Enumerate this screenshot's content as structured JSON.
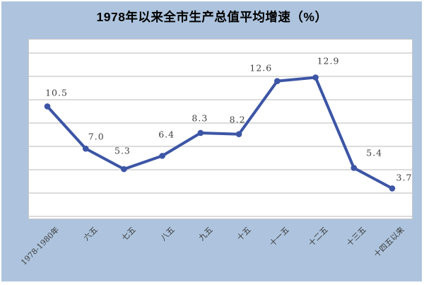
{
  "title": "1978年以来全市生产总值平均增速（%）",
  "chart_data": {
    "type": "line",
    "title": "1978年以来全市生产总值平均增速（%）",
    "categories": [
      "1978-1980年",
      "六五",
      "七五",
      "八五",
      "九五",
      "十五",
      "十一五",
      "十二五",
      "十三五",
      "十四五以来"
    ],
    "series": [
      {
        "name": "平均增速",
        "values": [
          10.5,
          7.0,
          5.3,
          6.4,
          8.3,
          8.2,
          12.6,
          12.9,
          5.4,
          3.7
        ]
      }
    ],
    "data_labels": [
      "10.5",
      "7.0",
      "5.3",
      "6.4",
      "8.3",
      "8.2",
      "12.6",
      "12.9",
      "5.4",
      "3.7"
    ],
    "xlabel": "",
    "ylabel": "",
    "ylim_estimate": [
      1,
      16
    ],
    "gridlines": "horizontal",
    "legend": "none",
    "x_label_rotation_deg": -45,
    "colors": {
      "background": "#aec4de",
      "plot_background": "#ffffff",
      "line": "#3c55a5",
      "marker": "#3c55a5",
      "gridline": "#c7c7c7",
      "plot_border": "#c9c9c9",
      "data_label_text": "#3f3f3f",
      "axis_label_text": "#3a3a3a",
      "title_text": "#000000"
    }
  }
}
